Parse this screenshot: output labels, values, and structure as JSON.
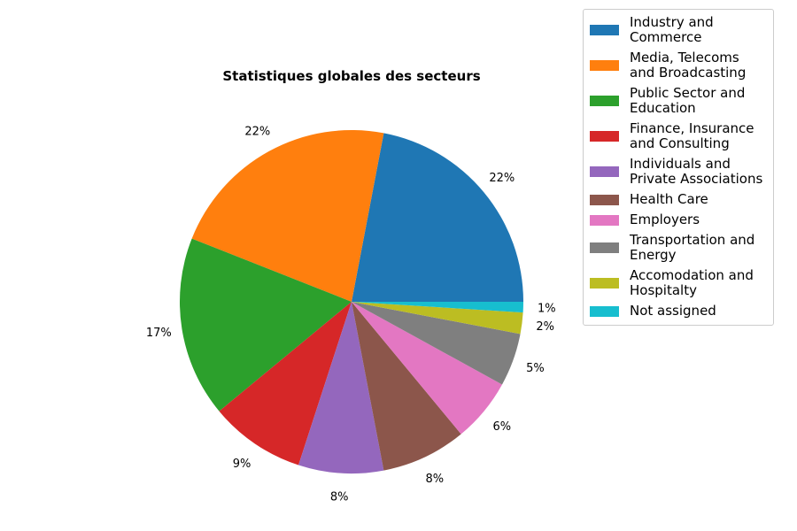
{
  "chart_data": {
    "type": "pie",
    "title": "Statistiques globales des secteurs",
    "slices": [
      {
        "label": "Industry and Commerce",
        "value": 22,
        "pct_label": "22%",
        "color": "#1f77b4"
      },
      {
        "label": "Media, Telecoms and Broadcasting",
        "value": 22,
        "pct_label": "22%",
        "color": "#ff7f0e"
      },
      {
        "label": "Public Sector and Education",
        "value": 17,
        "pct_label": "17%",
        "color": "#2ca02c"
      },
      {
        "label": "Finance, Insurance and Consulting",
        "value": 9,
        "pct_label": "9%",
        "color": "#d62728"
      },
      {
        "label": "Individuals and Private Associations",
        "value": 8,
        "pct_label": "8%",
        "color": "#9467bd"
      },
      {
        "label": "Health Care",
        "value": 8,
        "pct_label": "8%",
        "color": "#8c564b"
      },
      {
        "label": "Employers",
        "value": 6,
        "pct_label": "6%",
        "color": "#e377c2"
      },
      {
        "label": "Transportation and Energy",
        "value": 5,
        "pct_label": "5%",
        "color": "#7f7f7f"
      },
      {
        "label": "Accomodation and Hospitalty",
        "value": 2,
        "pct_label": "2%",
        "color": "#bcbd22"
      },
      {
        "label": "Not assigned",
        "value": 1,
        "pct_label": "1%",
        "color": "#17becf"
      }
    ],
    "start_angle": "0 degrees (3 o'clock), counter-clockwise",
    "legend_position": "top-right"
  }
}
